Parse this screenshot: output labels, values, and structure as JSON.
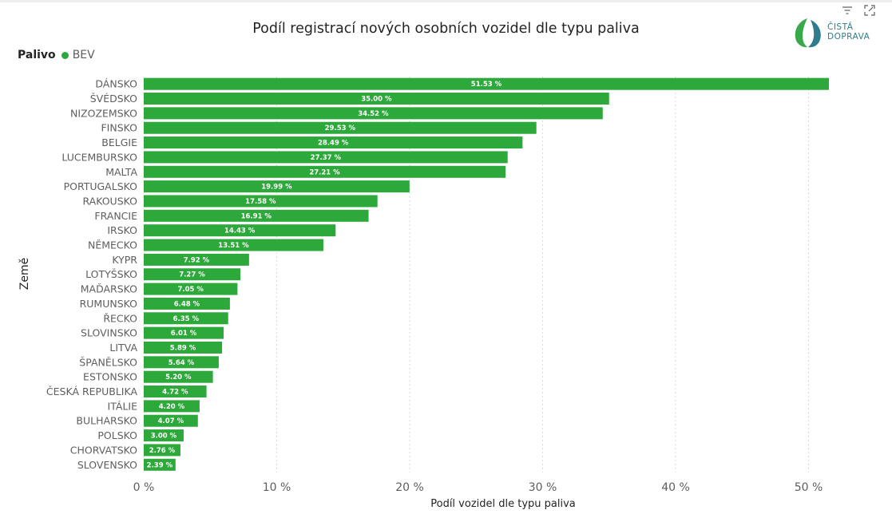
{
  "chart_data": {
    "type": "bar",
    "orientation": "horizontal",
    "title": "Podíl registrací nových osobních vozidel dle typu paliva",
    "legend": {
      "title": "Palivo",
      "entries": [
        "BEV"
      ],
      "placement": "top-left"
    },
    "xlabel": "Podíl vozidel dle typu paliva",
    "ylabel": "Země",
    "xlim": [
      0,
      55
    ],
    "xticks": [
      0,
      10,
      20,
      30,
      40,
      50
    ],
    "xtick_labels": [
      "0 %",
      "10 %",
      "20 %",
      "30 %",
      "40 %",
      "50 %"
    ],
    "grid": true,
    "color": "#2DA83A",
    "categories": [
      "DÁNSKO",
      "ŠVÉDSKO",
      "NIZOZEMSKO",
      "FINSKO",
      "BELGIE",
      "LUCEMBURSKO",
      "MALTA",
      "PORTUGALSKO",
      "RAKOUSKO",
      "FRANCIE",
      "IRSKO",
      "NĚMECKO",
      "KYPR",
      "LOTYŠSKO",
      "MAĎARSKO",
      "RUMUNSKO",
      "ŘECKO",
      "SLOVINSKO",
      "LITVA",
      "ŠPANĚLSKO",
      "ESTONSKO",
      "ČESKÁ REPUBLIKA",
      "ITÁLIE",
      "BULHARSKO",
      "POLSKO",
      "CHORVATSKO",
      "SLOVENSKO"
    ],
    "series": [
      {
        "name": "BEV",
        "values": [
          51.53,
          35.0,
          34.52,
          29.53,
          28.49,
          27.37,
          27.21,
          19.99,
          17.58,
          16.91,
          14.43,
          13.51,
          7.92,
          7.27,
          7.05,
          6.48,
          6.35,
          6.01,
          5.89,
          5.64,
          5.2,
          4.72,
          4.2,
          4.07,
          3.0,
          2.76,
          2.39
        ],
        "labels": [
          "51.53 %",
          "35.00 %",
          "34.52 %",
          "29.53 %",
          "28.49 %",
          "27.37 %",
          "27.21 %",
          "19.99 %",
          "17.58 %",
          "16.91 %",
          "14.43 %",
          "13.51 %",
          "7.92 %",
          "7.27 %",
          "7.05 %",
          "6.48 %",
          "6.35 %",
          "6.01 %",
          "5.89 %",
          "5.64 %",
          "5.20 %",
          "4.72 %",
          "4.20 %",
          "4.07 %",
          "3.00 %",
          "2.76 %",
          "2.39 %"
        ]
      }
    ]
  },
  "logo": {
    "line1": "ČISTÁ",
    "line2": "DOPRAVA"
  },
  "icons": {
    "filter": "filter-lines-icon",
    "focus": "expand-icon"
  }
}
